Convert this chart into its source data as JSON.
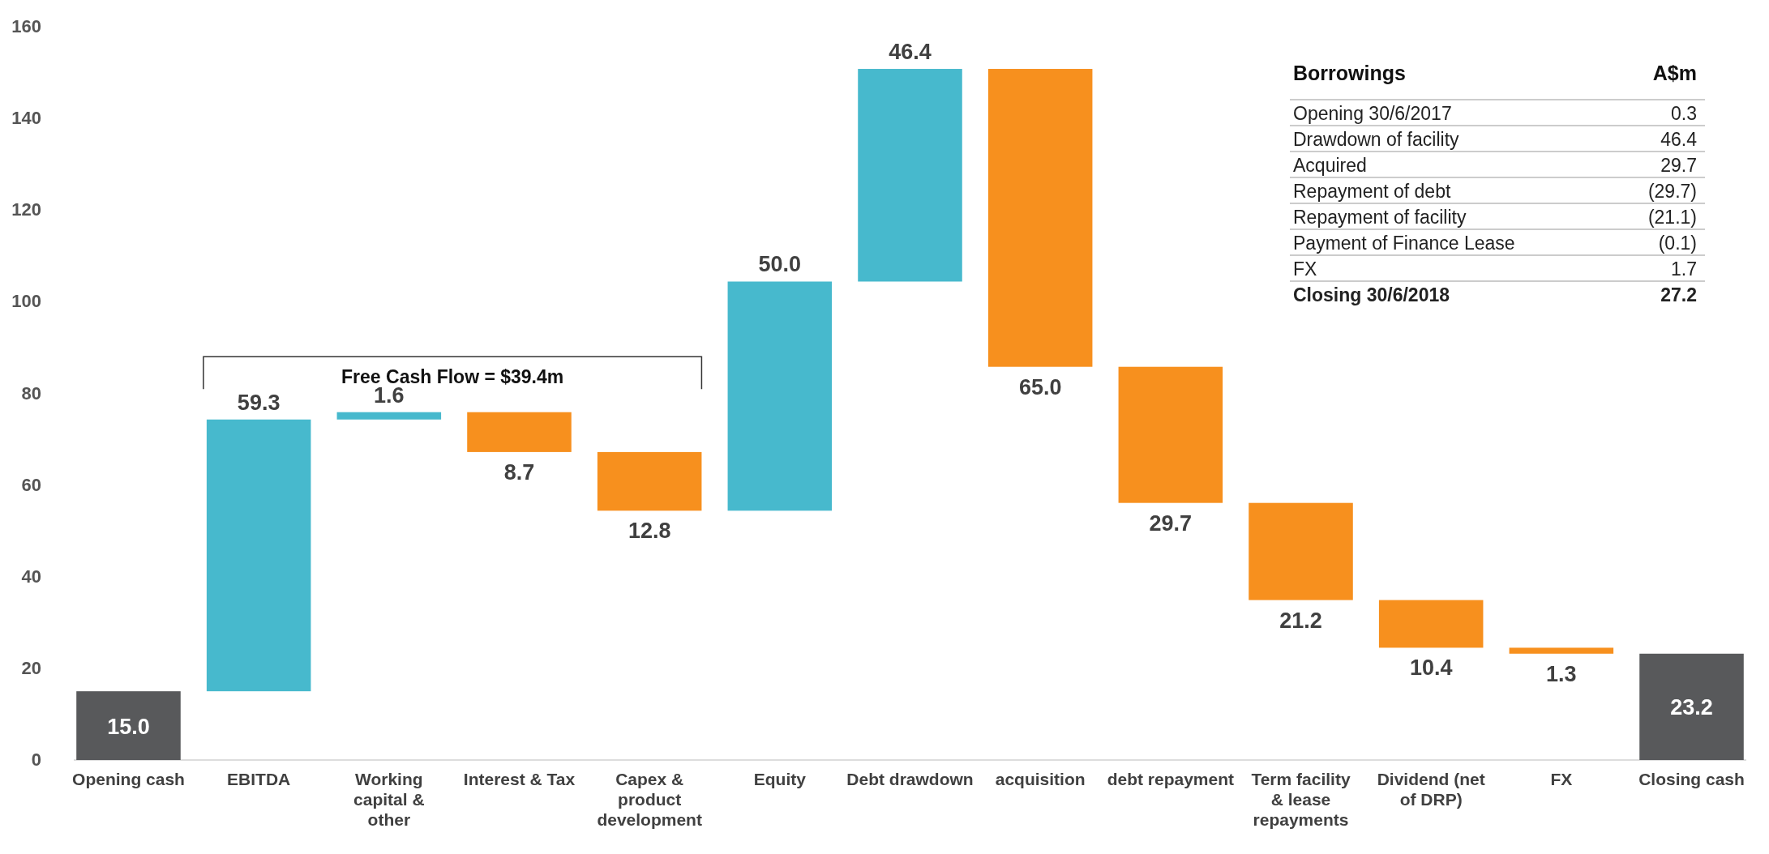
{
  "chart_data": {
    "type": "bar",
    "categories": [
      "Opening cash",
      "EBITDA",
      "Working capital & other",
      "Interest &  Tax",
      "Capex & product development",
      "Equity",
      "Debt drawdown",
      "acquisition",
      "debt repayment",
      "Term facility & lease repayments",
      "Dividend  (net of DRP)",
      "FX",
      "Closing    cash"
    ],
    "values": [
      15.0,
      59.3,
      1.6,
      -8.7,
      -12.8,
      50.0,
      46.4,
      -65.0,
      -29.7,
      -21.2,
      -10.4,
      -1.3,
      23.2
    ],
    "base": [
      0,
      15.0,
      74.3,
      75.9,
      67.2,
      54.4,
      104.4,
      150.8,
      85.8,
      56.1,
      34.9,
      24.5,
      0
    ],
    "colors": [
      "#58595b",
      "#47b9cd",
      "#47b9cd",
      "#f7901e",
      "#f7901e",
      "#47b9cd",
      "#47b9cd",
      "#f7901e",
      "#f7901e",
      "#f7901e",
      "#f7901e",
      "#f7901e",
      "#58595b"
    ],
    "value_labels": [
      "15.0",
      "59.3",
      "1.6",
      "8.7",
      "12.8",
      "50.0",
      "46.4",
      "65.0",
      "29.7",
      "21.2",
      "10.4",
      "1.3",
      "23.2"
    ],
    "ylim": [
      0,
      160
    ],
    "yticks": [
      0,
      20,
      40,
      60,
      80,
      100,
      120,
      140,
      160
    ],
    "grid": false,
    "annotations": [
      "Free Cash Flow = $39.4m",
      "Borrowings",
      "A$m",
      "Opening 30/6/2017",
      "0.3",
      "Drawdown of facility",
      "46.4",
      "Acquired",
      "29.7",
      "Repayment of debt",
      "(29.7)",
      "Repayment of facility",
      "(21.1)",
      "Payment of Finance Lease",
      "(0.1)",
      "FX",
      "1.7",
      "Closing 30/6/2018",
      "27.2"
    ]
  }
}
